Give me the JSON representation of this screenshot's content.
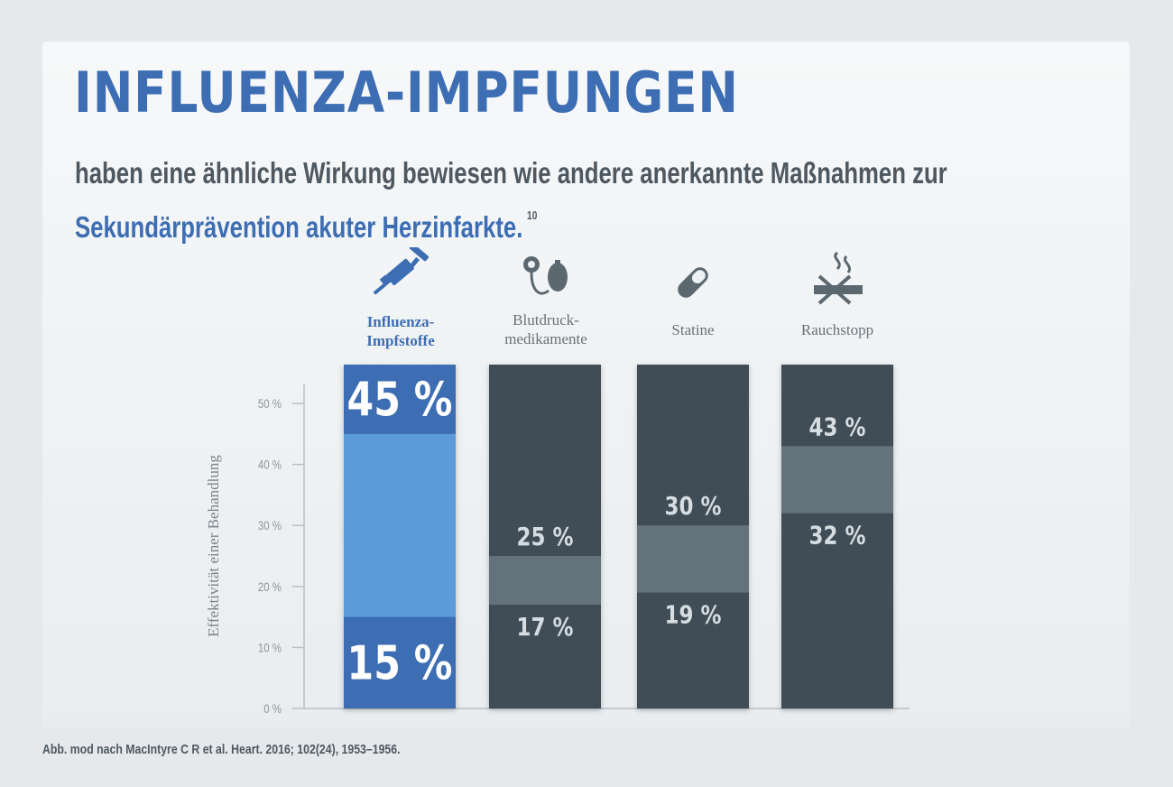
{
  "header": {
    "title": "INFLUENZA-IMPFUNGEN",
    "subtitle_line1": "haben eine ähnliche Wirkung bewiesen wie andere anerkannte Maßnahmen zur",
    "subtitle_line2": "Sekundärprävention akuter Herzinfarkte.",
    "footnote_marker": "10"
  },
  "source": "Abb. mod nach MacIntyre C R et al. Heart. 2016; 102(24), 1953–1956.",
  "icons": [
    "syringe-icon",
    "blood-pressure-monitor-icon",
    "pill-icon",
    "no-smoking-icon"
  ],
  "colors": {
    "accent_blue": "#3d6db3",
    "range_light_blue": "#5b9bd9",
    "dark_slate": "#414e57",
    "range_gray": "#63727b"
  },
  "chart_data": {
    "type": "bar",
    "subtype": "floating-range",
    "ylabel": "Effektivität einer Behandlung",
    "ylim": [
      0,
      50
    ],
    "y_ticks": [
      "0 %",
      "10 %",
      "20 %",
      "30 %",
      "40 %",
      "50 %"
    ],
    "categories": [
      "Influenza-\nImpfstoffe",
      "Blutdruck-\nmedikamente",
      "Statine",
      "Rauchstopp"
    ],
    "series": [
      {
        "low": 15,
        "high": 45,
        "low_label": "15 %",
        "high_label": "45 %"
      },
      {
        "low": 17,
        "high": 25,
        "low_label": "17 %",
        "high_label": "25 %"
      },
      {
        "low": 19,
        "high": 30,
        "low_label": "19 %",
        "high_label": "30 %"
      },
      {
        "low": 32,
        "high": 43,
        "low_label": "32 %",
        "high_label": "43 %"
      }
    ],
    "grid": false,
    "legend": "none"
  }
}
